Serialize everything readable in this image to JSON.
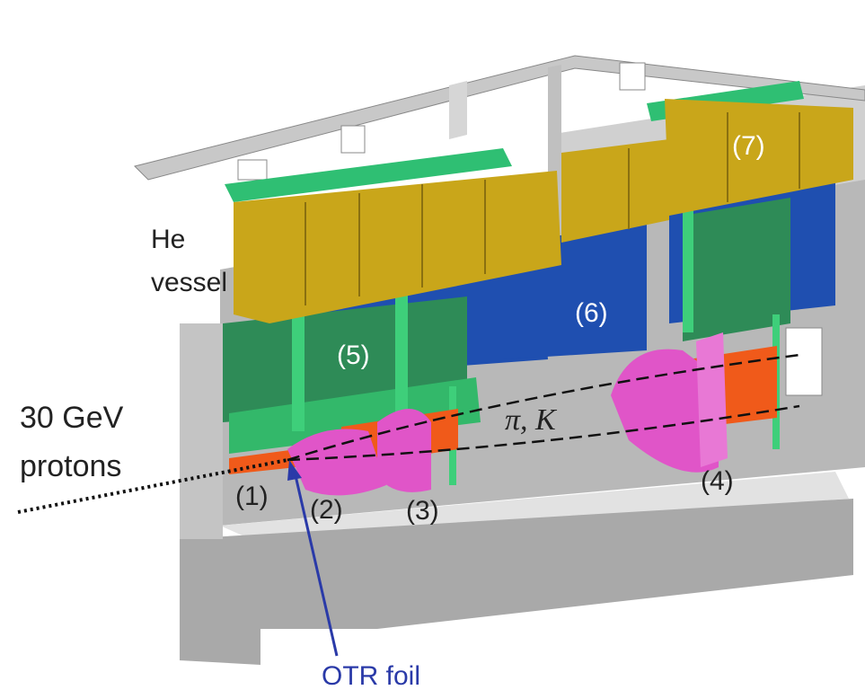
{
  "labels": {
    "he_vessel": [
      "He",
      "vessel"
    ],
    "beam": [
      "30 GeV",
      "protons"
    ],
    "particles": "π, K",
    "otr_foil": "OTR foil",
    "components": [
      "(1)",
      "(2)",
      "(3)",
      "(4)",
      "(5)",
      "(6)",
      "(7)"
    ]
  }
}
